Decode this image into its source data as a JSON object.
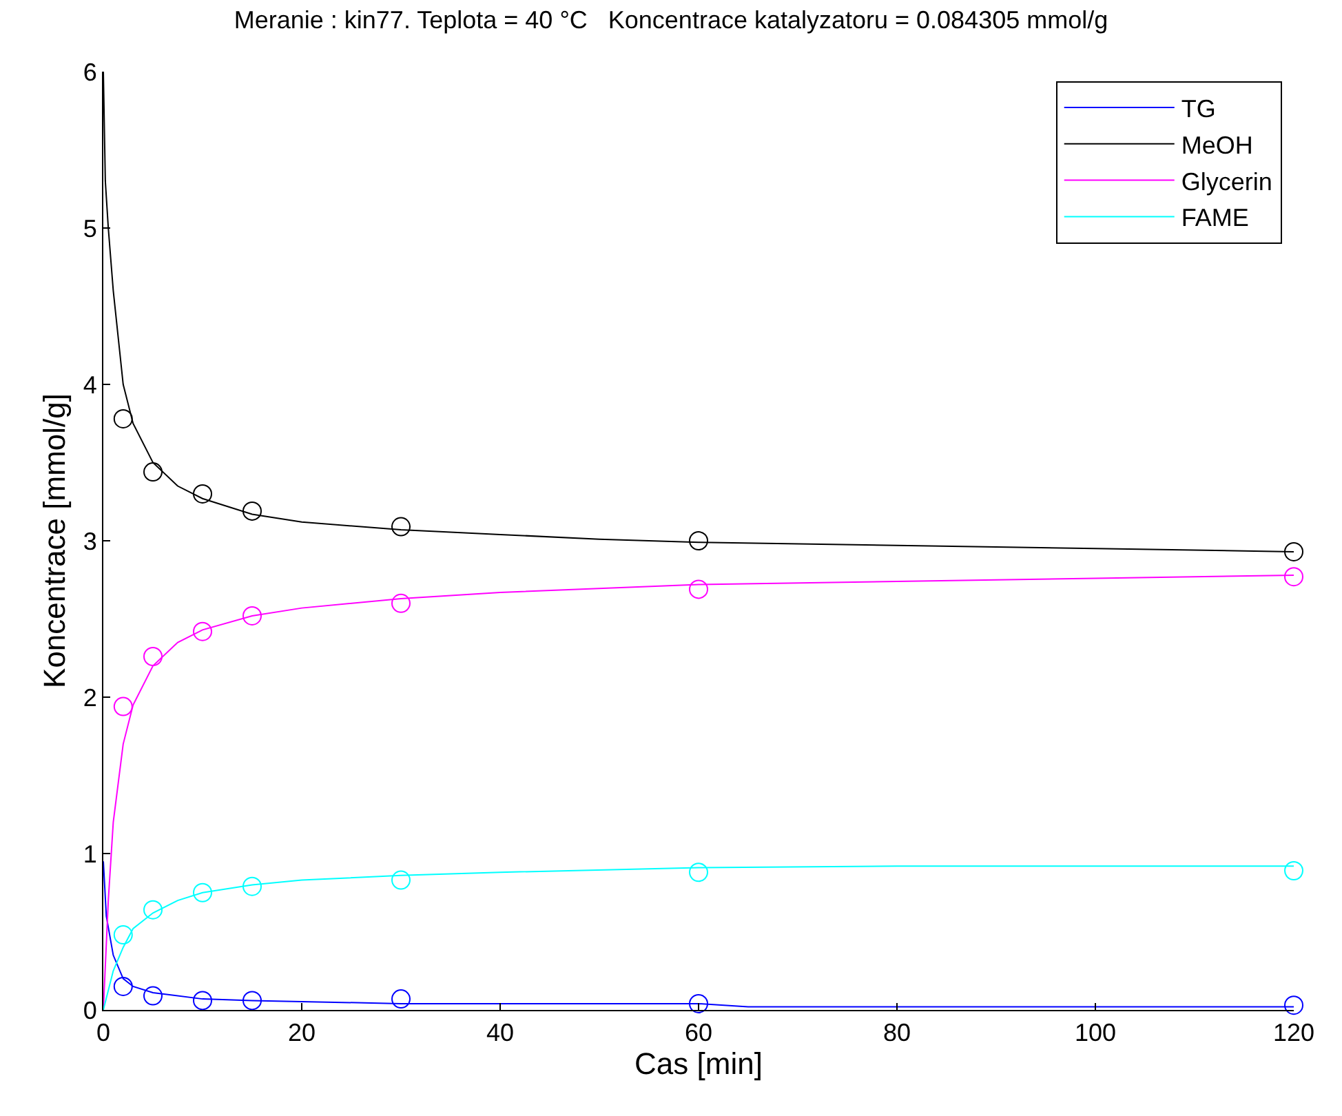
{
  "chart_data": {
    "type": "line",
    "title": "Meranie : kin77. Teplota = 40 °C   Koncentrace katalyzatoru = 0.084305 mmol/g",
    "xlabel": "Cas [min]",
    "ylabel": "Koncentrace [mmol/g]",
    "xlim": [
      0,
      120
    ],
    "xticks": [
      0,
      20,
      40,
      60,
      80,
      100,
      120
    ],
    "ylim": [
      0,
      6
    ],
    "yticks": [
      0,
      1,
      2,
      3,
      4,
      5,
      6
    ],
    "grid": false,
    "legend": "top right",
    "series": [
      {
        "name": "TG",
        "marker": "none",
        "color": "#0000ff",
        "x": [
          0,
          0.3,
          1,
          2,
          3,
          5,
          10,
          15,
          30,
          60,
          65,
          120
        ],
        "values": [
          0.95,
          0.6,
          0.35,
          0.2,
          0.15,
          0.11,
          0.07,
          0.06,
          0.04,
          0.04,
          0.02,
          0.02
        ]
      },
      {
        "name": "MeOH",
        "marker": "none",
        "color": "#000000",
        "x": [
          0,
          0.2,
          0.5,
          1,
          2,
          3,
          5,
          7.5,
          10,
          15,
          20,
          30,
          40,
          50,
          60,
          80,
          100,
          120
        ],
        "values": [
          6.0,
          5.3,
          5.0,
          4.6,
          4.0,
          3.75,
          3.5,
          3.35,
          3.27,
          3.17,
          3.12,
          3.07,
          3.04,
          3.01,
          2.99,
          2.97,
          2.95,
          2.93
        ]
      },
      {
        "name": "Glycerin",
        "marker": "none",
        "color": "#ff00ff",
        "x": [
          0,
          0.5,
          1,
          2,
          3,
          5,
          7.5,
          10,
          15,
          20,
          30,
          40,
          60,
          80,
          100,
          120
        ],
        "values": [
          0,
          0.7,
          1.2,
          1.7,
          1.95,
          2.2,
          2.35,
          2.43,
          2.52,
          2.57,
          2.63,
          2.67,
          2.72,
          2.74,
          2.76,
          2.78
        ]
      },
      {
        "name": "FAME",
        "marker": "none",
        "color": "#00ffff",
        "x": [
          0,
          1,
          2,
          3,
          5,
          7.5,
          10,
          15,
          20,
          30,
          40,
          60,
          80,
          120
        ],
        "values": [
          0,
          0.25,
          0.4,
          0.52,
          0.62,
          0.7,
          0.75,
          0.8,
          0.83,
          0.86,
          0.88,
          0.91,
          0.92,
          0.92
        ]
      },
      {
        "type": "scatter",
        "marker": "circle",
        "color": "#0000ff",
        "x": [
          2,
          5,
          10,
          15,
          30,
          60,
          120
        ],
        "values": [
          0.15,
          0.09,
          0.06,
          0.06,
          0.07,
          0.04,
          0.03
        ]
      },
      {
        "type": "scatter",
        "marker": "circle",
        "color": "#000000",
        "x": [
          2,
          5,
          10,
          15,
          30,
          60,
          120
        ],
        "values": [
          3.78,
          3.44,
          3.3,
          3.19,
          3.09,
          3.0,
          2.93
        ]
      },
      {
        "type": "scatter",
        "marker": "circle",
        "color": "#ff00ff",
        "x": [
          2,
          5,
          10,
          15,
          30,
          60,
          120
        ],
        "values": [
          1.94,
          2.26,
          2.42,
          2.52,
          2.6,
          2.69,
          2.77
        ]
      },
      {
        "type": "scatter",
        "marker": "circle",
        "color": "#00ffff",
        "x": [
          2,
          5,
          10,
          15,
          30,
          60,
          120
        ],
        "values": [
          0.48,
          0.64,
          0.75,
          0.79,
          0.83,
          0.88,
          0.89
        ]
      }
    ]
  }
}
